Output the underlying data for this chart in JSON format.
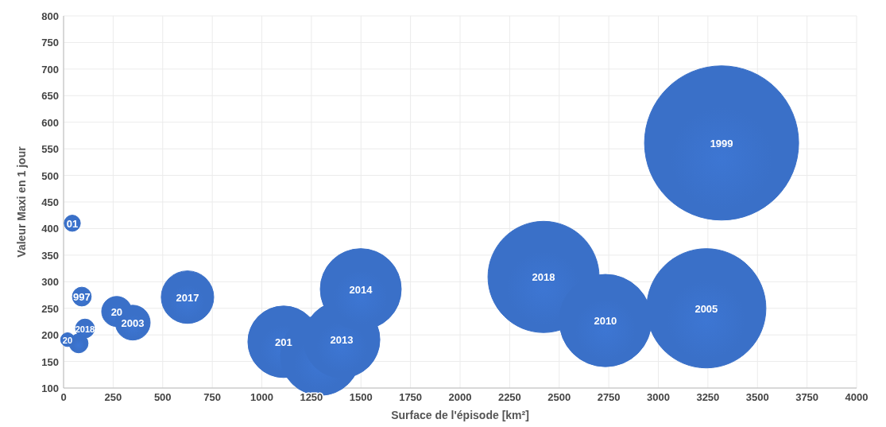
{
  "chart_data": {
    "type": "bubble",
    "xlabel": "Surface de l'épisode [km²]",
    "ylabel": "Valeur Maxi en 1 jour",
    "xlim": [
      0,
      4000
    ],
    "xticks": [
      0,
      250,
      500,
      750,
      1000,
      1250,
      1500,
      1750,
      2000,
      2250,
      2500,
      2750,
      3000,
      3250,
      3500,
      3750,
      4000
    ],
    "ylim": [
      100,
      800
    ],
    "yticks": [
      100,
      150,
      200,
      250,
      300,
      350,
      400,
      450,
      500,
      550,
      600,
      650,
      700,
      750,
      800
    ],
    "grid": true,
    "series": [
      {
        "color": "#3a70c8",
        "x": [
          20,
          76,
          108,
          44,
          92,
          268,
          349,
          625,
          1110,
          1295,
          1403,
          1499,
          2421,
          2733,
          3242,
          3319
        ],
        "values": [
          191,
          184,
          212,
          410,
          272,
          244,
          223,
          271,
          187,
          161,
          191,
          286,
          309,
          227,
          250,
          561
        ],
        "sizes": [
          0.008,
          0.015,
          0.015,
          0.011,
          0.015,
          0.038,
          0.051,
          0.116,
          0.215,
          0.266,
          0.245,
          0.276,
          0.52,
          0.358,
          0.598,
          1
        ]
      }
    ],
    "annotations": [
      {
        "text": "20",
        "x": 20,
        "y": 191
      },
      {
        "text": "2018",
        "x": 108,
        "y": 212
      },
      {
        "text": "01",
        "x": 44,
        "y": 410
      },
      {
        "text": "997",
        "x": 92,
        "y": 272
      },
      {
        "text": "20",
        "x": 268,
        "y": 244
      },
      {
        "text": "2003",
        "x": 349,
        "y": 223
      },
      {
        "text": "2017",
        "x": 625,
        "y": 271
      },
      {
        "text": "201",
        "x": 1110,
        "y": 187
      },
      {
        "text": "2013",
        "x": 1403,
        "y": 191
      },
      {
        "text": "2014",
        "x": 1499,
        "y": 286
      },
      {
        "text": "2018",
        "x": 2421,
        "y": 309
      },
      {
        "text": "2010",
        "x": 2733,
        "y": 227
      },
      {
        "text": "2005",
        "x": 3242,
        "y": 250
      },
      {
        "text": "1999",
        "x": 3319,
        "y": 561
      }
    ]
  }
}
